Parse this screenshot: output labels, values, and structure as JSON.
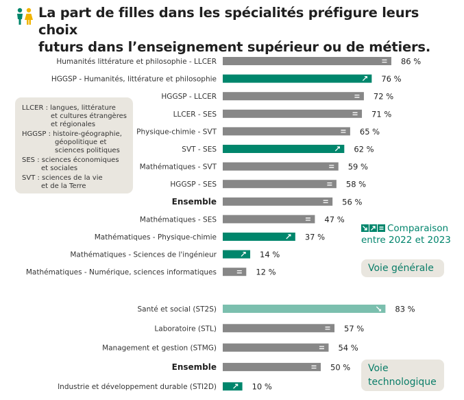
{
  "header": {
    "title_line1": "La part de filles dans les spécialités préfigure leurs choix",
    "title_line2": "futurs dans l’enseignement supérieur ou de métiers."
  },
  "legend": {
    "lines": [
      "LLCER : langues, littérature",
      "et cultures étrangères",
      "et régionales",
      "HGGSP : histoire-géographie,",
      "géopolitique et",
      "sciences politiques",
      "SES : sciences économiques",
      "et sociales",
      "SVT : sciences de la vie",
      "et de la Terre"
    ]
  },
  "comparison": {
    "line1": "Comparaison",
    "line2": "entre 2022 et 2023",
    "icons": [
      "trend-down-icon",
      "trend-up-icon",
      "trend-equal-icon"
    ]
  },
  "badges": {
    "generale": "Voie générale",
    "techno_line1": "Voie",
    "techno_line2": "technologique"
  },
  "colors": {
    "grey": "#878787",
    "green": "#00866c",
    "light_green": "#7bbfae",
    "badge_bg": "#e9e6df"
  },
  "chart_data": {
    "type": "bar",
    "orientation": "horizontal",
    "unit": "%",
    "xlim": [
      0,
      100
    ],
    "groups": [
      {
        "name": "Voie générale",
        "bars": [
          {
            "label": "Humanités littérature et philosophie - LLCER",
            "value": 86,
            "trend": "equal",
            "bold": false
          },
          {
            "label": "HGGSP - Humanités, littérature et philosophie",
            "value": 76,
            "trend": "up",
            "bold": false
          },
          {
            "label": "HGGSP - LLCER",
            "value": 72,
            "trend": "equal",
            "bold": false
          },
          {
            "label": "LLCER - SES",
            "value": 71,
            "trend": "equal",
            "bold": false
          },
          {
            "label": "Physique-chimie - SVT",
            "value": 65,
            "trend": "equal",
            "bold": false
          },
          {
            "label": "SVT - SES",
            "value": 62,
            "trend": "up",
            "bold": false
          },
          {
            "label": "Mathématiques - SVT",
            "value": 59,
            "trend": "equal",
            "bold": false
          },
          {
            "label": "HGGSP - SES",
            "value": 58,
            "trend": "equal",
            "bold": false
          },
          {
            "label": "Ensemble",
            "value": 56,
            "trend": "equal",
            "bold": true
          },
          {
            "label": "Mathématiques - SES",
            "value": 47,
            "trend": "equal",
            "bold": false
          },
          {
            "label": "Mathématiques - Physique-chimie",
            "value": 37,
            "trend": "up",
            "bold": false
          },
          {
            "label": "Mathématiques - Sciences de l'ingénieur",
            "value": 14,
            "trend": "up",
            "bold": false
          },
          {
            "label": "Mathématiques - Numérique, sciences informatiques",
            "value": 12,
            "trend": "equal",
            "bold": false
          }
        ]
      },
      {
        "name": "Voie technologique",
        "bars": [
          {
            "label": "Santé et social (ST2S)",
            "value": 83,
            "trend": "down",
            "bold": false
          },
          {
            "label": "Laboratoire (STL)",
            "value": 57,
            "trend": "equal",
            "bold": false
          },
          {
            "label": "Management et gestion (STMG)",
            "value": 54,
            "trend": "equal",
            "bold": false
          },
          {
            "label": "Ensemble",
            "value": 50,
            "trend": "equal",
            "bold": true
          },
          {
            "label": "Industrie et développement durable (STI2D)",
            "value": 10,
            "trend": "up",
            "bold": false
          }
        ]
      }
    ]
  }
}
